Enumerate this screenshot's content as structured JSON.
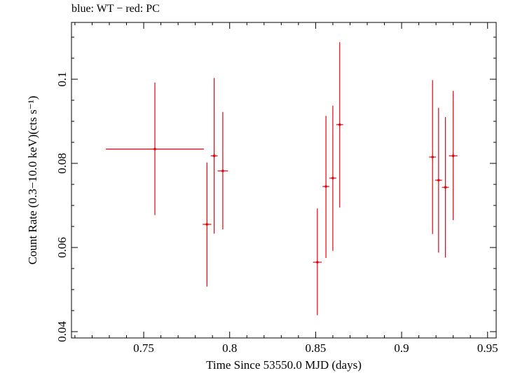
{
  "chart_data": {
    "type": "scatter",
    "title": "blue: WT − red: PC",
    "xlabel": "Time Since 53550.0 MJD (days)",
    "ylabel": "Count Rate (0.3−10.0 keV)(cts s⁻¹)",
    "xlim": [
      0.708,
      0.955
    ],
    "ylim": [
      0.0385,
      0.1135
    ],
    "xticks": [
      {
        "value": 0.75,
        "label": "0.75"
      },
      {
        "value": 0.8,
        "label": "0.8"
      },
      {
        "value": 0.85,
        "label": "0.85"
      },
      {
        "value": 0.9,
        "label": "0.9"
      },
      {
        "value": 0.95,
        "label": "0.95"
      }
    ],
    "yticks": [
      {
        "value": 0.04,
        "label": "0.04"
      },
      {
        "value": 0.06,
        "label": "0.06"
      },
      {
        "value": 0.08,
        "label": "0.08"
      },
      {
        "value": 0.1,
        "label": "0.1"
      }
    ],
    "grid": false,
    "series": [
      {
        "name": "PC",
        "color": "#e8000b",
        "points": [
          {
            "x": 0.7565,
            "xerr_lo": 0.0285,
            "xerr_hi": 0.0285,
            "y": 0.0834,
            "ylo": 0.0677,
            "yhi": 0.0992
          },
          {
            "x": 0.7868,
            "xerr_lo": 0.0025,
            "xerr_hi": 0.0025,
            "y": 0.0655,
            "ylo": 0.0507,
            "yhi": 0.0802
          },
          {
            "x": 0.791,
            "xerr_lo": 0.002,
            "xerr_hi": 0.002,
            "y": 0.0818,
            "ylo": 0.0633,
            "yhi": 0.1003
          },
          {
            "x": 0.796,
            "xerr_lo": 0.003,
            "xerr_hi": 0.003,
            "y": 0.0782,
            "ylo": 0.0643,
            "yhi": 0.0922
          },
          {
            "x": 0.851,
            "xerr_lo": 0.0025,
            "xerr_hi": 0.0025,
            "y": 0.0565,
            "ylo": 0.0439,
            "yhi": 0.0693
          },
          {
            "x": 0.856,
            "xerr_lo": 0.002,
            "xerr_hi": 0.002,
            "y": 0.0745,
            "ylo": 0.0575,
            "yhi": 0.0913
          },
          {
            "x": 0.86,
            "xerr_lo": 0.002,
            "xerr_hi": 0.002,
            "y": 0.0765,
            "ylo": 0.0592,
            "yhi": 0.0937
          },
          {
            "x": 0.864,
            "xerr_lo": 0.002,
            "xerr_hi": 0.002,
            "y": 0.0892,
            "ylo": 0.0695,
            "yhi": 0.1088
          },
          {
            "x": 0.918,
            "xerr_lo": 0.002,
            "xerr_hi": 0.002,
            "y": 0.0815,
            "ylo": 0.0632,
            "yhi": 0.0998
          },
          {
            "x": 0.9215,
            "xerr_lo": 0.002,
            "xerr_hi": 0.002,
            "y": 0.076,
            "ylo": 0.0588,
            "yhi": 0.0932
          },
          {
            "x": 0.9255,
            "xerr_lo": 0.002,
            "xerr_hi": 0.002,
            "y": 0.0743,
            "ylo": 0.0576,
            "yhi": 0.091
          },
          {
            "x": 0.93,
            "xerr_lo": 0.0025,
            "xerr_hi": 0.0025,
            "y": 0.0818,
            "ylo": 0.0665,
            "yhi": 0.0972
          }
        ]
      }
    ]
  }
}
